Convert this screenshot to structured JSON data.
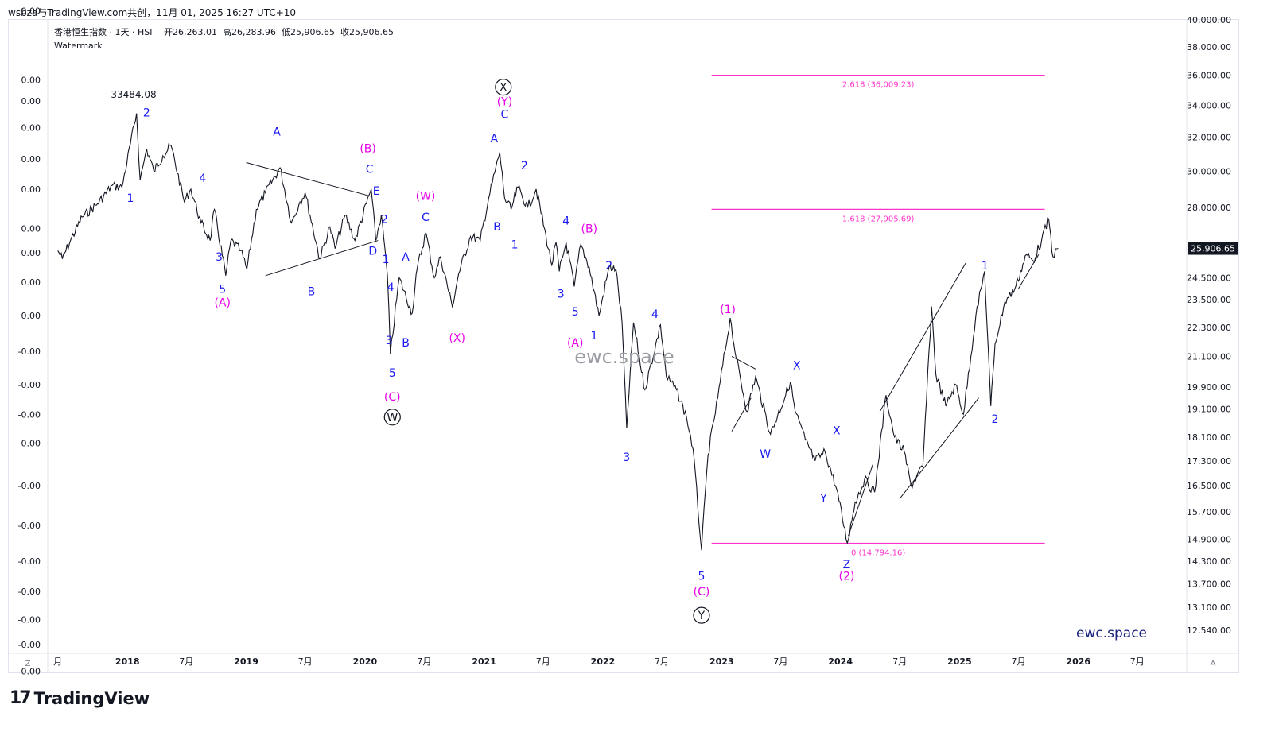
{
  "header": {
    "credit": "wsbza与TradingView.com共创，11月 01, 2025 16:27 UTC+10"
  },
  "legend": {
    "title": "香港恒生指数 · 1天 · HSI",
    "open_label": "开",
    "open": "26,263.01",
    "high_label": "高",
    "high": "26,283.96",
    "low_label": "低",
    "low": "25,906.65",
    "close_label": "收",
    "close": "25,906.65",
    "watermark_title": "Watermark"
  },
  "watermark_center": "ewc.space",
  "watermark_corner": "ewc.space",
  "footer": {
    "brand": "TradingView"
  },
  "axis_buttons": {
    "left": "Z",
    "right": "A"
  },
  "colors": {
    "price": "#131722",
    "blue_wave": "#1b1bf0",
    "magenta_wave": "#e600e6",
    "fib_line": "#ff33cc",
    "price_tag_bg": "#131722",
    "bear_candle": "#cc1f33"
  },
  "chart_data": {
    "type": "line",
    "title": "香港恒生指数 · 1天 · HSI",
    "x_range": [
      "2017-05-01",
      "2026-11-30"
    ],
    "y_scale": "log",
    "y_range": [
      12000,
      40000
    ],
    "right_axis_ticks": [
      "40,000.00",
      "38,000.00",
      "36,000.00",
      "34,000.00",
      "32,000.00",
      "30,000.00",
      "28,000.00",
      "24,500.00",
      "23,500.00",
      "22,300.00",
      "21,100.00",
      "19,900.00",
      "19,100.00",
      "18,100.00",
      "17,300.00",
      "16,500.00",
      "15,700.00",
      "14,900.00",
      "14,300.00",
      "13,700.00",
      "13,100.00",
      "12,540.00"
    ],
    "right_axis_tick_values": [
      40000,
      38000,
      36000,
      34000,
      32000,
      30000,
      28000,
      24500,
      23500,
      22300,
      21100,
      19900,
      19100,
      18100,
      17300,
      16500,
      15700,
      14900,
      14300,
      13700,
      13100,
      12540
    ],
    "left_axis_ticks": [
      "0.00",
      "0.00",
      "0.00",
      "0.00",
      "0.00",
      "0.00",
      "0.00",
      "0.00",
      "0.00",
      "0.00",
      "-0.00",
      "-0.00",
      "-0.00",
      "-0.00",
      "-0.00",
      "-0.00",
      "-0.00",
      "-0.00",
      "-0.00",
      "-0.00",
      "-0.00"
    ],
    "left_axis_tick_values": [
      40700,
      35700,
      34300,
      32600,
      30700,
      29000,
      26900,
      25700,
      24300,
      22800,
      21300,
      20000,
      18900,
      17900,
      16500,
      15300,
      14300,
      13500,
      12800,
      12200,
      11600
    ],
    "x_ticks": [
      {
        "label": "月",
        "date": "2017-06-01",
        "bold": false
      },
      {
        "label": "2018",
        "date": "2018-01-01",
        "bold": true
      },
      {
        "label": "7月",
        "date": "2018-07-01",
        "bold": false
      },
      {
        "label": "2019",
        "date": "2019-01-01",
        "bold": true
      },
      {
        "label": "7月",
        "date": "2019-07-01",
        "bold": false
      },
      {
        "label": "2020",
        "date": "2020-01-01",
        "bold": true
      },
      {
        "label": "7月",
        "date": "2020-07-01",
        "bold": false
      },
      {
        "label": "2021",
        "date": "2021-01-01",
        "bold": true
      },
      {
        "label": "7月",
        "date": "2021-07-01",
        "bold": false
      },
      {
        "label": "2022",
        "date": "2022-01-01",
        "bold": true
      },
      {
        "label": "7月",
        "date": "2022-07-01",
        "bold": false
      },
      {
        "label": "2023",
        "date": "2023-01-01",
        "bold": true
      },
      {
        "label": "7月",
        "date": "2023-07-01",
        "bold": false
      },
      {
        "label": "2024",
        "date": "2024-01-01",
        "bold": true
      },
      {
        "label": "7月",
        "date": "2024-07-01",
        "bold": false
      },
      {
        "label": "2025",
        "date": "2025-01-01",
        "bold": true
      },
      {
        "label": "7月",
        "date": "2025-07-01",
        "bold": false
      },
      {
        "label": "2026",
        "date": "2026-01-01",
        "bold": true
      },
      {
        "label": "7月",
        "date": "2026-07-01",
        "bold": false
      }
    ],
    "last_price": {
      "value": 25906.65,
      "label": "25,906.65"
    },
    "series": [
      {
        "values": [
          [
            "2017-06-01",
            25800
          ],
          [
            "2017-06-15",
            25400
          ],
          [
            "2017-07-10",
            26300
          ],
          [
            "2017-08-15",
            27500
          ],
          [
            "2017-10-01",
            28200
          ],
          [
            "2017-11-15",
            29200
          ],
          [
            "2017-12-15",
            29100
          ],
          [
            "2018-01-29",
            33484
          ],
          [
            "2018-02-09",
            29500
          ],
          [
            "2018-03-01",
            31300
          ],
          [
            "2018-03-23",
            30000
          ],
          [
            "2018-04-20",
            30900
          ],
          [
            "2018-05-15",
            31500
          ],
          [
            "2018-06-25",
            28300
          ],
          [
            "2018-07-15",
            29000
          ],
          [
            "2018-08-15",
            27200
          ],
          [
            "2018-09-12",
            26300
          ],
          [
            "2018-09-25",
            27900
          ],
          [
            "2018-10-30",
            24600
          ],
          [
            "2018-11-15",
            26300
          ],
          [
            "2018-12-15",
            25800
          ],
          [
            "2019-01-03",
            24900
          ],
          [
            "2019-02-01",
            27900
          ],
          [
            "2019-03-01",
            28800
          ],
          [
            "2019-04-15",
            30200
          ],
          [
            "2019-05-20",
            27200
          ],
          [
            "2019-06-15",
            28300
          ],
          [
            "2019-07-01",
            28800
          ],
          [
            "2019-08-15",
            25400
          ],
          [
            "2019-09-15",
            27000
          ],
          [
            "2019-10-01",
            25900
          ],
          [
            "2019-11-01",
            27600
          ],
          [
            "2019-12-01",
            26300
          ],
          [
            "2020-01-20",
            29000
          ],
          [
            "2020-02-03",
            26300
          ],
          [
            "2020-02-20",
            27600
          ],
          [
            "2020-03-10",
            24600
          ],
          [
            "2020-03-19",
            21200
          ],
          [
            "2020-04-15",
            24500
          ],
          [
            "2020-05-25",
            22900
          ],
          [
            "2020-06-10",
            25000
          ],
          [
            "2020-07-06",
            26700
          ],
          [
            "2020-08-01",
            24500
          ],
          [
            "2020-08-20",
            25500
          ],
          [
            "2020-09-25",
            23200
          ],
          [
            "2020-10-15",
            24700
          ],
          [
            "2020-11-20",
            26500
          ],
          [
            "2020-12-20",
            26300
          ],
          [
            "2021-01-15",
            28500
          ],
          [
            "2021-02-18",
            31100
          ],
          [
            "2021-03-05",
            28500
          ],
          [
            "2021-03-25",
            27900
          ],
          [
            "2021-04-15",
            29100
          ],
          [
            "2021-05-15",
            28000
          ],
          [
            "2021-06-10",
            29000
          ],
          [
            "2021-07-28",
            25100
          ],
          [
            "2021-08-10",
            26200
          ],
          [
            "2021-08-20",
            24800
          ],
          [
            "2021-09-10",
            26200
          ],
          [
            "2021-10-05",
            24100
          ],
          [
            "2021-10-25",
            26100
          ],
          [
            "2021-11-20",
            25000
          ],
          [
            "2021-12-20",
            22800
          ],
          [
            "2022-01-20",
            25000
          ],
          [
            "2022-02-10",
            24900
          ],
          [
            "2022-03-01",
            22500
          ],
          [
            "2022-03-15",
            18400
          ],
          [
            "2022-04-05",
            22500
          ],
          [
            "2022-05-10",
            19800
          ],
          [
            "2022-06-27",
            22400
          ],
          [
            "2022-07-15",
            20300
          ],
          [
            "2022-08-15",
            19800
          ],
          [
            "2022-09-15",
            18800
          ],
          [
            "2022-10-05",
            17700
          ],
          [
            "2022-10-31",
            14600
          ],
          [
            "2022-11-20",
            17500
          ],
          [
            "2022-12-20",
            19500
          ],
          [
            "2023-01-27",
            22700
          ],
          [
            "2023-02-15",
            21000
          ],
          [
            "2023-03-20",
            19000
          ],
          [
            "2023-04-15",
            20300
          ],
          [
            "2023-05-31",
            18200
          ],
          [
            "2023-07-31",
            20100
          ],
          [
            "2023-08-15",
            19000
          ],
          [
            "2023-09-15",
            18000
          ],
          [
            "2023-10-15",
            17300
          ],
          [
            "2023-11-15",
            17600
          ],
          [
            "2023-12-20",
            16400
          ],
          [
            "2024-01-22",
            14800
          ],
          [
            "2024-02-15",
            16000
          ],
          [
            "2024-03-15",
            16700
          ],
          [
            "2024-04-15",
            16300
          ],
          [
            "2024-05-20",
            19600
          ],
          [
            "2024-06-15",
            18100
          ],
          [
            "2024-07-15",
            17600
          ],
          [
            "2024-08-05",
            16500
          ],
          [
            "2024-09-10",
            17100
          ],
          [
            "2024-10-07",
            23200
          ],
          [
            "2024-10-20",
            20400
          ],
          [
            "2024-11-20",
            19200
          ],
          [
            "2024-12-20",
            20000
          ],
          [
            "2025-01-13",
            18900
          ],
          [
            "2025-02-20",
            22800
          ],
          [
            "2025-03-19",
            24800
          ],
          [
            "2025-04-07",
            19200
          ],
          [
            "2025-04-20",
            21600
          ],
          [
            "2025-05-20",
            23400
          ],
          [
            "2025-06-20",
            24000
          ],
          [
            "2025-07-25",
            25600
          ],
          [
            "2025-08-15",
            25300
          ],
          [
            "2025-09-10",
            26300
          ],
          [
            "2025-10-02",
            27400
          ],
          [
            "2025-10-15",
            25500
          ],
          [
            "2025-10-31",
            25906.65
          ]
        ]
      }
    ],
    "fib_levels": [
      {
        "label": "2.618 (36,009.23)",
        "value": 36009.23
      },
      {
        "label": "1.618 (27,905.69)",
        "value": 27905.69
      },
      {
        "label": "0 (14,794.16)",
        "value": 14794.16
      }
    ],
    "annotations": {
      "high": "33484.08",
      "blue_labels": [
        "1",
        "2",
        "3",
        "4",
        "5",
        "A",
        "B",
        "C",
        "A",
        "B",
        "C",
        "D",
        "E",
        "1",
        "2",
        "3",
        "4",
        "5",
        "A",
        "B",
        "C",
        "A",
        "B",
        "C",
        "1",
        "2",
        "3",
        "4",
        "5",
        "1",
        "2",
        "3",
        "4",
        "5",
        "W",
        "X",
        "Y",
        "X",
        "Z",
        "1",
        "2"
      ],
      "magenta_labels": [
        "(A)",
        "(B)",
        "(C)",
        "(W)",
        "(X)",
        "(Y)",
        "(A)",
        "(B)",
        "(C)",
        "(1)",
        "(2)"
      ],
      "circled_labels": [
        "W",
        "X",
        "Y"
      ]
    }
  }
}
